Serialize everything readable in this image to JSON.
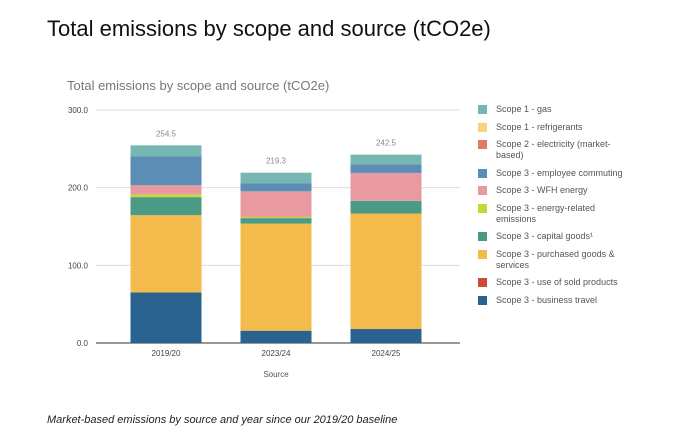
{
  "title": "Total emissions by scope and source (tCO2e)",
  "caption": "Market-based emissions by source and year since our 2019/20 baseline",
  "chart_data": {
    "type": "bar",
    "stacked": true,
    "title": "Total emissions by scope and source (tCO2e)",
    "xlabel": "Source",
    "ylabel": "",
    "categories": [
      "2019/20",
      "2023/24",
      "2024/25"
    ],
    "ylim": [
      0,
      300
    ],
    "yticks": [
      "0.0",
      "100.0",
      "200.0",
      "300.0"
    ],
    "grid": true,
    "legend": "right",
    "totals": [
      "254.5",
      "219.3",
      "242.5"
    ],
    "series": [
      {
        "name": "Scope 3 - business travel",
        "color": "#2a628f",
        "values": [
          65.0,
          15.8,
          18.0
        ]
      },
      {
        "name": "Scope 3 - use of sold products",
        "color": "#d04a3a",
        "values": [
          0,
          0,
          0
        ]
      },
      {
        "name": "Scope 3 - purchased goods & services",
        "color": "#f2bb4b",
        "values": [
          99.6,
          138.0,
          148.7
        ]
      },
      {
        "name": "Scope 3 - capital goods¹",
        "color": "#4a9a86",
        "values": [
          23.2,
          7.0,
          16.3
        ]
      },
      {
        "name": "Scope 3 - energy-related emissions",
        "color": "#c4d938",
        "values": [
          3.5,
          1.5,
          0
        ]
      },
      {
        "name": "Scope 3 - WFH energy",
        "color": "#e89aa0",
        "values": [
          11.8,
          33.0,
          36.0
        ]
      },
      {
        "name": "Scope 3 - employee commuting",
        "color": "#5b8db5",
        "values": [
          37.5,
          10.5,
          11.0
        ]
      },
      {
        "name": "Scope 2 - electricity (market-based)",
        "color": "#e07b6a",
        "values": [
          0,
          0,
          0
        ]
      },
      {
        "name": "Scope 1 - refrigerants",
        "color": "#f8d27c",
        "values": [
          0,
          0,
          0
        ]
      },
      {
        "name": "Scope 1 - gas",
        "color": "#76b7b2",
        "values": [
          13.9,
          13.5,
          12.5
        ]
      }
    ]
  }
}
